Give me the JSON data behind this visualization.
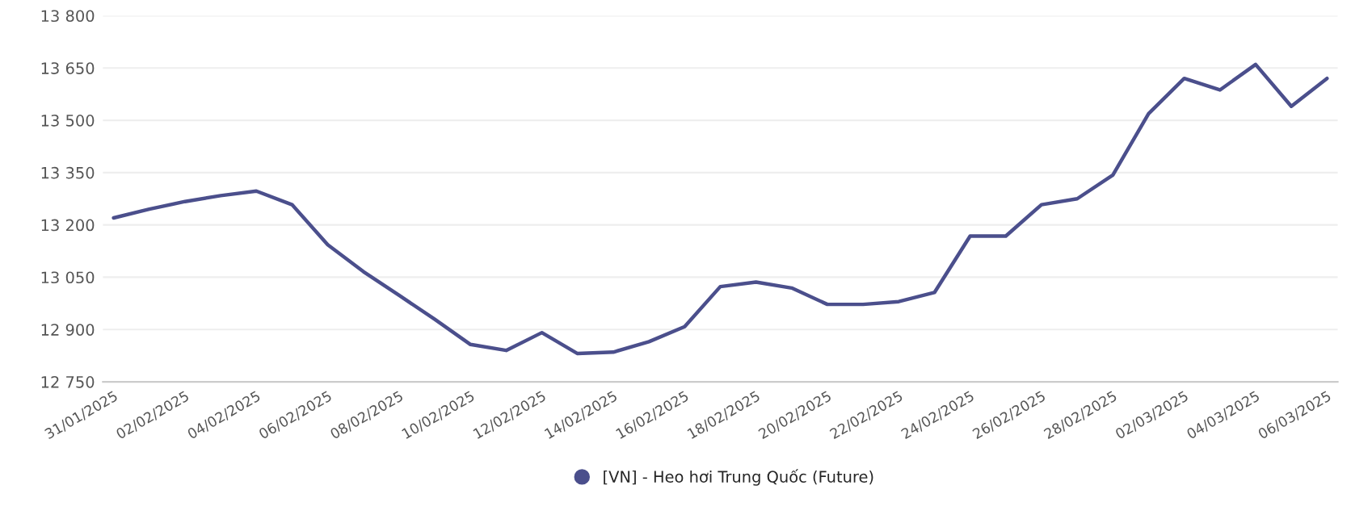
{
  "chart_data": {
    "type": "line",
    "categories": [
      "31/01/2025",
      null,
      "02/02/2025",
      null,
      "04/02/2025",
      null,
      "06/02/2025",
      null,
      "08/02/2025",
      null,
      "10/02/2025",
      null,
      "12/02/2025",
      null,
      "14/02/2025",
      null,
      "16/02/2025",
      null,
      "18/02/2025",
      null,
      "20/02/2025",
      null,
      "22/02/2025",
      null,
      "24/02/2025",
      null,
      "26/02/2025",
      null,
      "28/02/2025",
      null,
      "02/03/2025",
      null,
      "04/03/2025",
      null,
      "06/03/2025"
    ],
    "series": [
      {
        "name": "[VN] - Heo hơi Trung Quốc (Future)",
        "color": "#4b4f8c",
        "values": [
          13220,
          13245,
          13267,
          13284,
          13297,
          13258,
          13143,
          13066,
          12998,
          12929,
          12857,
          12840,
          12891,
          12831,
          12835,
          12865,
          12908,
          13023,
          13036,
          13019,
          12972,
          12972,
          12980,
          13006,
          13168,
          13168,
          13258,
          13275,
          13343,
          13519,
          13620,
          13587,
          13660,
          13540,
          13620
        ]
      }
    ],
    "ylim": [
      12750,
      13800
    ],
    "yticks": [
      {
        "value": 12750,
        "label": "12 750"
      },
      {
        "value": 12900,
        "label": "12 900"
      },
      {
        "value": 13050,
        "label": "13 050"
      },
      {
        "value": 13200,
        "label": "13 200"
      },
      {
        "value": 13350,
        "label": "13 350"
      },
      {
        "value": 13500,
        "label": "13 500"
      },
      {
        "value": 13650,
        "label": "13 650"
      },
      {
        "value": 13800,
        "label": "13 800"
      }
    ],
    "grid": "y",
    "legend": "bottom",
    "line_style": "solid"
  }
}
